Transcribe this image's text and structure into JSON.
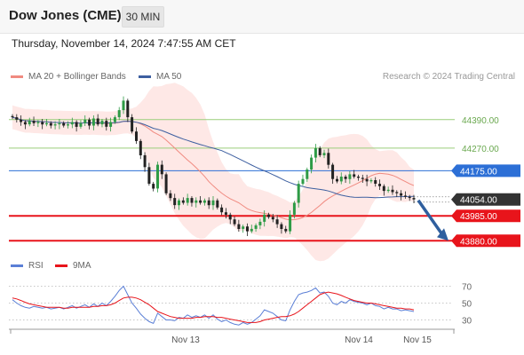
{
  "header": {
    "title": "Dow Jones (CME)",
    "timeframe_button": "30 MIN"
  },
  "timestamp": "Thursday, November 14, 2024 7:47:55 AM CET",
  "legend": {
    "items": [
      {
        "label": "MA 20 + Bollinger Bands",
        "color": "#f08a80"
      },
      {
        "label": "MA 50",
        "color": "#3d5fa0"
      }
    ],
    "credit": "Research © 2024 Trading Central"
  },
  "rsi_legend": {
    "items": [
      {
        "label": "RSI",
        "color": "#5b7fd6"
      },
      {
        "label": "9MA",
        "color": "#e8141b"
      }
    ]
  },
  "chart_data": [
    {
      "type": "candlestick",
      "y_range": [
        43840,
        44520
      ],
      "x_ticks": [
        "Nov 13",
        "Nov 14",
        "Nov 15"
      ],
      "levels": [
        {
          "label": "44390.00",
          "value": 44390,
          "style": "green-thin"
        },
        {
          "label": "44270.00",
          "value": 44270,
          "style": "green-thin"
        },
        {
          "label": "44175.00",
          "value": 44175,
          "style": "blue"
        },
        {
          "label": "44054.00",
          "value": 44054,
          "style": "last-price"
        },
        {
          "label": "43985.00",
          "value": 43985,
          "style": "red"
        },
        {
          "label": "43880.00",
          "value": 43880,
          "style": "red"
        }
      ],
      "closes": [
        44400,
        44390,
        44380,
        44370,
        44385,
        44375,
        44380,
        44370,
        44375,
        44365,
        44370,
        44375,
        44365,
        44370,
        44380,
        44360,
        44375,
        44390,
        44365,
        44395,
        44370,
        44385,
        44360,
        44380,
        44400,
        44430,
        44470,
        44400,
        44340,
        44300,
        44240,
        44190,
        44120,
        44100,
        44200,
        44160,
        44080,
        44060,
        44030,
        44050,
        44040,
        44060,
        44040,
        44050,
        44040,
        44050,
        44030,
        44050,
        44020,
        44000,
        43990,
        43970,
        43950,
        43930,
        43940,
        43920,
        43930,
        43945,
        43960,
        43990,
        43980,
        43970,
        43950,
        43930,
        43920,
        43990,
        44040,
        44120,
        44140,
        44180,
        44230,
        44270,
        44240,
        44250,
        44200,
        44140,
        44130,
        44150,
        44140,
        44160,
        44150,
        44145,
        44140,
        44130,
        44135,
        44120,
        44110,
        44090,
        44095,
        44085,
        44080,
        44070,
        44065,
        44060,
        44054
      ]
    },
    {
      "type": "line",
      "name": "RSI",
      "y_range": [
        20,
        80
      ],
      "y_ticks": [
        70,
        50,
        30
      ],
      "series": [
        {
          "name": "RSI",
          "color": "#5b7fd6",
          "values": [
            54,
            50,
            47,
            45,
            44,
            46,
            45,
            44,
            45,
            43,
            44,
            45,
            43,
            45,
            47,
            44,
            46,
            48,
            45,
            49,
            46,
            50,
            47,
            52,
            58,
            65,
            70,
            60,
            50,
            44,
            37,
            32,
            28,
            26,
            38,
            34,
            30,
            30,
            29,
            33,
            32,
            36,
            33,
            35,
            33,
            36,
            32,
            36,
            31,
            28,
            30,
            27,
            25,
            24,
            27,
            25,
            27,
            31,
            35,
            42,
            40,
            38,
            34,
            30,
            29,
            42,
            52,
            60,
            62,
            63,
            65,
            68,
            62,
            63,
            58,
            50,
            48,
            52,
            50,
            54,
            52,
            51,
            50,
            48,
            50,
            47,
            46,
            43,
            45,
            43,
            43,
            41,
            42,
            41,
            40
          ]
        },
        {
          "name": "9MA",
          "color": "#e8141b",
          "values": [
            56,
            55,
            53,
            51,
            49,
            48,
            47,
            46,
            45,
            45,
            45,
            45,
            44,
            44,
            45,
            45,
            45,
            45,
            45,
            46,
            46,
            47,
            47,
            48,
            50,
            53,
            56,
            57,
            57,
            56,
            54,
            51,
            48,
            44,
            40,
            38,
            36,
            34,
            33,
            32,
            32,
            32,
            32,
            33,
            33,
            34,
            34,
            34,
            33,
            33,
            32,
            31,
            30,
            29,
            28,
            27,
            27,
            27,
            28,
            30,
            31,
            32,
            33,
            34,
            34,
            35,
            37,
            40,
            44,
            48,
            52,
            56,
            60,
            62,
            63,
            62,
            61,
            59,
            57,
            55,
            53,
            52,
            51,
            50,
            50,
            49,
            48,
            47,
            46,
            45,
            44,
            44,
            43,
            43,
            42
          ]
        }
      ]
    }
  ]
}
